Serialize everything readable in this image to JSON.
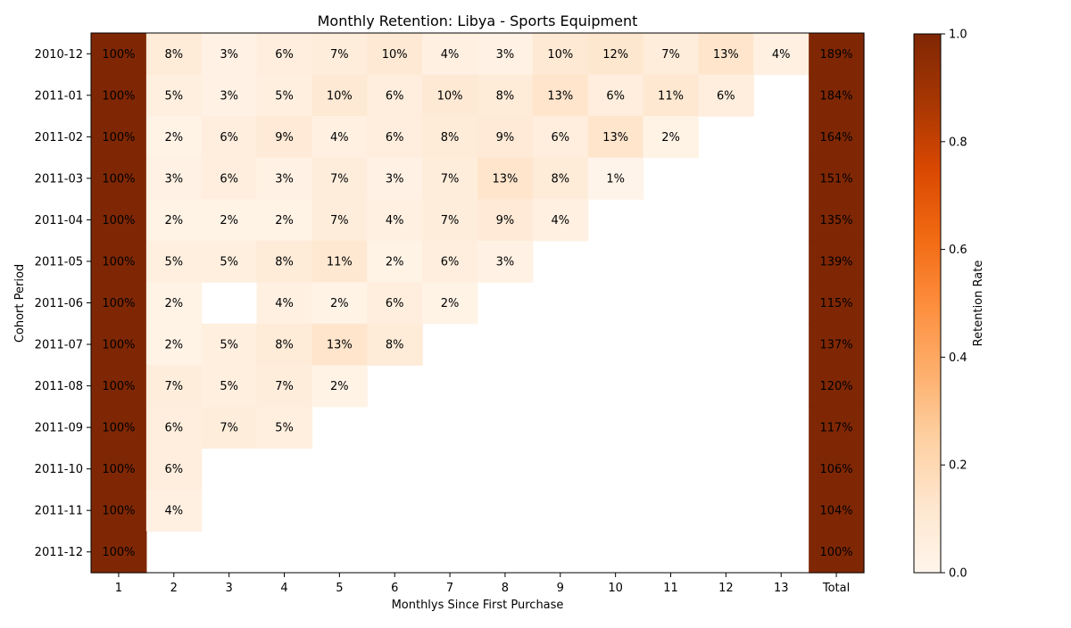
{
  "chart_data": {
    "type": "heatmap",
    "title": "Monthly Retention: Libya - Sports Equipment",
    "xlabel": "Monthlys Since First Purchase",
    "ylabel": "Cohort Period",
    "x_categories": [
      "1",
      "2",
      "3",
      "4",
      "5",
      "6",
      "7",
      "8",
      "9",
      "10",
      "11",
      "12",
      "13",
      "Total"
    ],
    "y_categories": [
      "2010-12",
      "2011-01",
      "2011-02",
      "2011-03",
      "2011-04",
      "2011-05",
      "2011-06",
      "2011-07",
      "2011-08",
      "2011-09",
      "2011-10",
      "2011-11",
      "2011-12"
    ],
    "values": [
      [
        100,
        8,
        3,
        6,
        7,
        10,
        4,
        3,
        10,
        12,
        7,
        13,
        4,
        189
      ],
      [
        100,
        5,
        3,
        5,
        10,
        6,
        10,
        8,
        13,
        6,
        11,
        6,
        null,
        184
      ],
      [
        100,
        2,
        6,
        9,
        4,
        6,
        8,
        9,
        6,
        13,
        2,
        null,
        null,
        164
      ],
      [
        100,
        3,
        6,
        3,
        7,
        3,
        7,
        13,
        8,
        1,
        null,
        null,
        null,
        151
      ],
      [
        100,
        2,
        2,
        2,
        7,
        4,
        7,
        9,
        4,
        null,
        null,
        null,
        null,
        135
      ],
      [
        100,
        5,
        5,
        8,
        11,
        2,
        6,
        3,
        null,
        null,
        null,
        null,
        null,
        139
      ],
      [
        100,
        2,
        null,
        4,
        2,
        6,
        2,
        null,
        null,
        null,
        null,
        null,
        null,
        115
      ],
      [
        100,
        2,
        5,
        8,
        13,
        8,
        null,
        null,
        null,
        null,
        null,
        null,
        null,
        137
      ],
      [
        100,
        7,
        5,
        7,
        2,
        null,
        null,
        null,
        null,
        null,
        null,
        null,
        null,
        120
      ],
      [
        100,
        6,
        7,
        5,
        null,
        null,
        null,
        null,
        null,
        null,
        null,
        null,
        null,
        117
      ],
      [
        100,
        6,
        null,
        null,
        null,
        null,
        null,
        null,
        null,
        null,
        null,
        null,
        null,
        106
      ],
      [
        100,
        4,
        null,
        null,
        null,
        null,
        null,
        null,
        null,
        null,
        null,
        null,
        null,
        104
      ],
      [
        100,
        null,
        null,
        null,
        null,
        null,
        null,
        null,
        null,
        null,
        null,
        null,
        null,
        100
      ]
    ],
    "value_unit": "%",
    "colormap": "Oranges",
    "colorbar": {
      "label": "Retention Rate",
      "range": [
        0.0,
        1.0
      ],
      "ticks": [
        "0.0",
        "0.2",
        "0.4",
        "0.6",
        "0.8",
        "1.0"
      ]
    }
  }
}
